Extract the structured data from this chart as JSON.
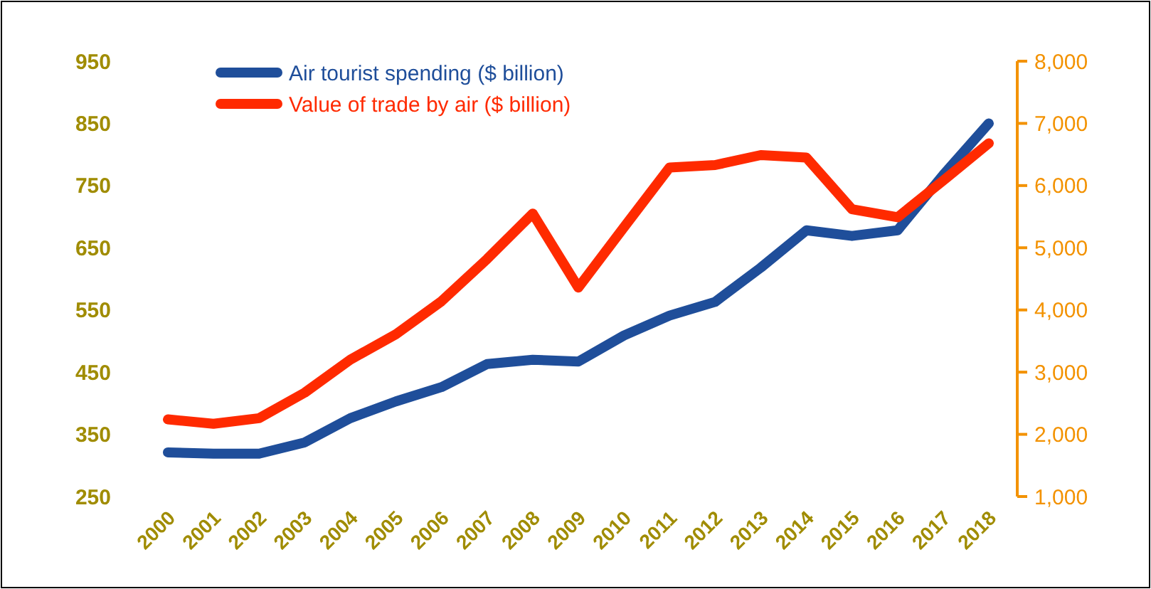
{
  "chart_data": {
    "type": "line",
    "categories": [
      "2000",
      "2001",
      "2002",
      "2003",
      "2004",
      "2005",
      "2006",
      "2007",
      "2008",
      "2009",
      "2010",
      "2011",
      "2012",
      "2013",
      "2014",
      "2015",
      "2016",
      "2017",
      "2018"
    ],
    "series": [
      {
        "name": "Air tourist spending ($ billion)",
        "color": "#1f4e9a",
        "values": [
          321,
          319,
          319,
          337,
          376,
          403,
          426,
          463,
          470,
          467,
          509,
          541,
          563,
          618,
          678,
          669,
          678,
          767,
          850
        ]
      },
      {
        "name": "Value of trade by air ($ billion)",
        "color": "#ff2a00",
        "axis": "y2",
        "values": [
          2240,
          2170,
          2260,
          2670,
          3200,
          3610,
          4140,
          4820,
          5550,
          4360,
          5330,
          6290,
          6330,
          6490,
          6450,
          5620,
          5490,
          6080,
          6680
        ]
      }
    ],
    "ylim": [
      250,
      950
    ],
    "yticks": [
      250,
      350,
      450,
      550,
      650,
      750,
      850,
      950
    ],
    "y2lim": [
      1000,
      8000
    ],
    "y2ticks": [
      {
        "value": 1000,
        "label": "1,000"
      },
      {
        "value": 2000,
        "label": "2,000"
      },
      {
        "value": 3000,
        "label": "3,000"
      },
      {
        "value": 4000,
        "label": "4,000"
      },
      {
        "value": 5000,
        "label": "5,000"
      },
      {
        "value": 6000,
        "label": "6,000"
      },
      {
        "value": 7000,
        "label": "7,000"
      },
      {
        "value": 8000,
        "label": "8,000"
      }
    ],
    "grid": false,
    "legend": "top left",
    "line_style": "solid",
    "marker": "none"
  }
}
